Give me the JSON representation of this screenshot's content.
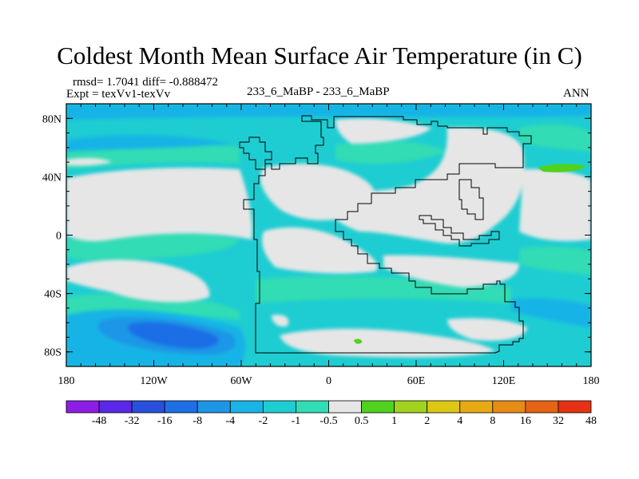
{
  "title": "Coldest Month Mean Surface Air Temperature (in C)",
  "stats": "rmsd= 1.7041 diff= -0.888472",
  "experiment": "Expt = texVv1-texVv",
  "case": "233_6_MaBP - 233_6_MaBP",
  "season": "ANN",
  "axes": {
    "lat_labels": [
      "80N",
      "40N",
      "0",
      "40S",
      "80S"
    ],
    "lat_values": [
      80,
      40,
      0,
      -40,
      -80
    ],
    "lon_labels": [
      "180",
      "120W",
      "60W",
      "0",
      "60E",
      "120E",
      "180"
    ],
    "lon_values": [
      -180,
      -120,
      -60,
      0,
      60,
      120,
      180
    ],
    "lat_range": [
      -90,
      90
    ],
    "lon_range": [
      -180,
      180
    ]
  },
  "colorbar": {
    "labels": [
      "-48",
      "-32",
      "-16",
      "-8",
      "-4",
      "-2",
      "-1",
      "-0.5",
      "0.5",
      "1",
      "2",
      "4",
      "8",
      "16",
      "32",
      "48"
    ],
    "colors": [
      "#8c1ee6",
      "#5a28e6",
      "#2850dc",
      "#1e6ee6",
      "#1e96e6",
      "#19b4e6",
      "#1ecdd2",
      "#32dcb4",
      "#e6e6e6",
      "#50d21e",
      "#a0d21e",
      "#dcc814",
      "#e6aa14",
      "#e68c14",
      "#e66414",
      "#e63214"
    ]
  },
  "colors": {
    "neutral": "#e6e6e6",
    "cool_light": "#32dcb4",
    "cool": "#1ecdd2",
    "cold": "#19b4e6",
    "colder": "#1e96e6",
    "coldest": "#1e6ee6",
    "warm": "#50d21e"
  }
}
